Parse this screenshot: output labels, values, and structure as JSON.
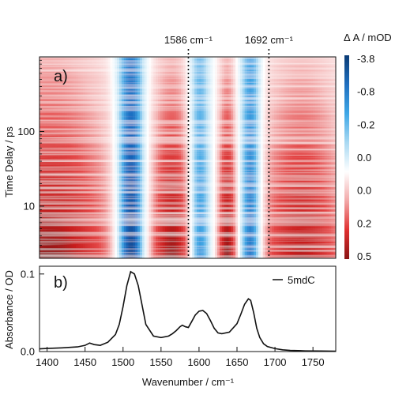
{
  "chart_data": [
    {
      "type": "heatmap",
      "panel_label": "a)",
      "xlabel": "Wavenumber / cm⁻¹",
      "ylabel": "Time Delay / ps",
      "xlim": [
        1390,
        1780
      ],
      "ylim_log": [
        2,
        1000
      ],
      "yscale": "log",
      "yticks": [
        10,
        100
      ],
      "ytick_labels": [
        "10",
        "100"
      ],
      "annotations": [
        {
          "x": 1586,
          "label": "1586 cm⁻¹",
          "style": "dotted-vertical"
        },
        {
          "x": 1692,
          "label": "1692 cm⁻¹",
          "style": "dotted-vertical"
        }
      ],
      "colorbar": {
        "title": "Δ A / mOD",
        "tick_labels": [
          "-3.8",
          "-0.8",
          "-0.2",
          "0.0",
          "0.0",
          "0.2",
          "0.5"
        ],
        "colors": [
          "#0a3b75",
          "#1f6fbf",
          "#3ea7e6",
          "#a9d9f2",
          "#ffffff",
          "#f2a8a8",
          "#e03030",
          "#8a1414"
        ]
      },
      "bands": [
        {
          "x_center": 1400,
          "width": 90,
          "sign": "positive",
          "intensity": 0.75
        },
        {
          "x_center": 1510,
          "width": 18,
          "sign": "negative",
          "intensity": 1.0
        },
        {
          "x_center": 1565,
          "width": 28,
          "sign": "positive",
          "intensity": 0.7
        },
        {
          "x_center": 1600,
          "width": 14,
          "sign": "negative",
          "intensity": 0.65
        },
        {
          "x_center": 1637,
          "width": 12,
          "sign": "positive",
          "intensity": 0.7
        },
        {
          "x_center": 1668,
          "width": 14,
          "sign": "negative",
          "intensity": 0.8
        },
        {
          "x_center": 1735,
          "width": 60,
          "sign": "positive",
          "intensity": 0.65
        }
      ]
    },
    {
      "type": "line",
      "panel_label": "b)",
      "xlabel": "Wavenumber / cm⁻¹",
      "ylabel": "Absorbance / OD",
      "xlim": [
        1390,
        1780
      ],
      "ylim": [
        0,
        0.11
      ],
      "xticks": [
        1400,
        1450,
        1500,
        1550,
        1600,
        1650,
        1700,
        1750
      ],
      "yticks": [
        0.0,
        0.1
      ],
      "ytick_labels": [
        "0.0",
        "0.1"
      ],
      "series": [
        {
          "name": "5mdC",
          "x": [
            1390,
            1400,
            1420,
            1440,
            1450,
            1456,
            1462,
            1470,
            1480,
            1490,
            1495,
            1500,
            1505,
            1510,
            1515,
            1520,
            1525,
            1530,
            1540,
            1550,
            1560,
            1565,
            1570,
            1575,
            1578,
            1582,
            1586,
            1590,
            1595,
            1600,
            1605,
            1610,
            1615,
            1620,
            1625,
            1630,
            1640,
            1650,
            1655,
            1660,
            1665,
            1668,
            1672,
            1676,
            1680,
            1685,
            1690,
            1700,
            1710,
            1720,
            1740,
            1760,
            1780
          ],
          "y": [
            0.0035,
            0.004,
            0.0048,
            0.006,
            0.008,
            0.011,
            0.009,
            0.008,
            0.012,
            0.022,
            0.035,
            0.058,
            0.085,
            0.103,
            0.1,
            0.085,
            0.06,
            0.035,
            0.02,
            0.018,
            0.02,
            0.023,
            0.027,
            0.032,
            0.034,
            0.032,
            0.031,
            0.038,
            0.047,
            0.052,
            0.053,
            0.049,
            0.04,
            0.03,
            0.024,
            0.023,
            0.025,
            0.036,
            0.048,
            0.061,
            0.068,
            0.066,
            0.05,
            0.03,
            0.018,
            0.01,
            0.0065,
            0.0038,
            0.0022,
            0.0015,
            0.0009,
            0.0007,
            0.0005
          ]
        }
      ]
    }
  ]
}
